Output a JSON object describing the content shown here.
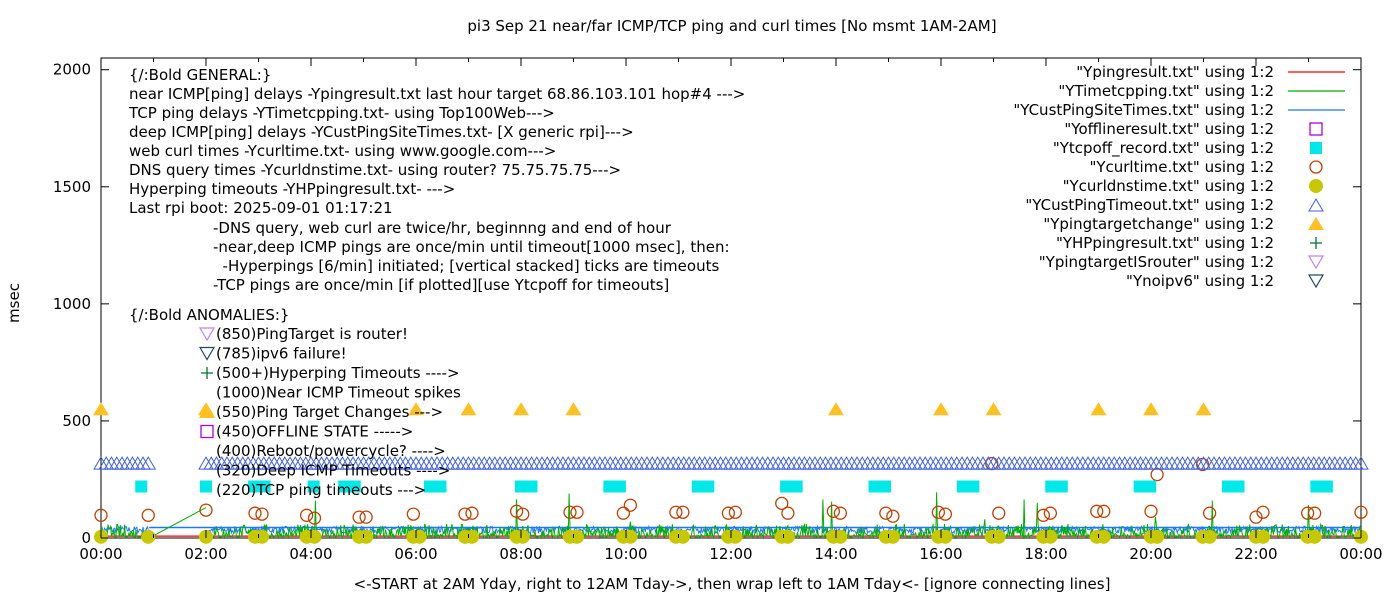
{
  "chart_data": {
    "type": "scatter",
    "title": "pi3 Sep 21  near/far ICMP/TCP ping and curl times [No msmt 1AM-2AM]",
    "xlabel": "<-START at 2AM Yday, right to 12AM Tday->, then wrap left to 1AM Tday<- [ignore connecting lines]",
    "ylabel": "msec",
    "xlim": [
      "00:00",
      "24:00"
    ],
    "ylim": [
      0,
      2050
    ],
    "x_ticks": [
      "00:00",
      "02:00",
      "04:00",
      "06:00",
      "08:00",
      "10:00",
      "12:00",
      "14:00",
      "16:00",
      "18:00",
      "20:00",
      "22:00",
      "00:00"
    ],
    "y_ticks": [
      "0",
      "500",
      "1000",
      "1500",
      "2000"
    ],
    "grid": false,
    "legend_placement": "top-right",
    "legend": [
      {
        "label": "\"Ypingresult.txt\" using 1:2",
        "style": "line",
        "color": "#ff0000"
      },
      {
        "label": "\"YTimetcpping.txt\" using 1:2",
        "style": "line",
        "color": "#00b000"
      },
      {
        "label": "\"YCustPingSiteTimes.txt\" using 1:2",
        "style": "line",
        "color": "#1e78ff"
      },
      {
        "label": "\"Yofflineresult.txt\" using 1:2",
        "style": "open-square",
        "color": "#b000e0"
      },
      {
        "label": "\"Ytcpoff_record.txt\" using 1:2",
        "style": "filled-square",
        "color": "#00e8e8"
      },
      {
        "label": "\"Ycurltime.txt\" using 1:2",
        "style": "open-circle",
        "color": "#c04000"
      },
      {
        "label": "\"Ycurldnstime.txt\" using 1:2",
        "style": "filled-circle",
        "color": "#c8c800"
      },
      {
        "label": "\"YCustPingTimeout.txt\" using 1:2",
        "style": "open-triangle",
        "color": "#4060e0"
      },
      {
        "label": "\"Ypingtargetchange\" using 1:2",
        "style": "filled-triangle",
        "color": "#ffc020"
      },
      {
        "label": "\"YHPpingresult.txt\" using 1:2",
        "style": "plus",
        "color": "#007030"
      },
      {
        "label": "\"YpingtargetISrouter\" using 1:2",
        "style": "open-down-triangle",
        "color": "#c080ff"
      },
      {
        "label": "\"Ynoipv6\" using 1:2",
        "style": "open-down-triangle",
        "color": "#204860"
      }
    ],
    "series": {
      "Ypingresult": {
        "baseline_ms": 8,
        "gap": [
          "00:55",
          "02:00"
        ]
      },
      "YTimetcpping": {
        "baseline_ms": [
          5,
          40
        ],
        "spikes": [
          [
            "02:00",
            130
          ],
          [
            "04:05",
            160
          ],
          [
            "06:10",
            60
          ],
          [
            "07:55",
            165
          ],
          [
            "08:55",
            190
          ],
          [
            "10:05",
            70
          ],
          [
            "13:45",
            165
          ],
          [
            "13:55",
            155
          ],
          [
            "15:55",
            195
          ],
          [
            "16:50",
            80
          ],
          [
            "17:35",
            165
          ],
          [
            "17:50",
            150
          ],
          [
            "20:05",
            90
          ],
          [
            "21:10",
            160
          ],
          [
            "23:00",
            140
          ]
        ],
        "connecting_line": [
          [
            "00:55",
            0
          ],
          [
            "02:00",
            130
          ]
        ]
      },
      "YCustPingSiteTimes": {
        "baseline_ms": [
          20,
          50
        ],
        "gap": [
          "00:55",
          "02:00"
        ]
      },
      "Ytcpoff_record": {
        "value": 220,
        "times": [
          "00:46",
          "02:00",
          "02:55",
          "03:07",
          "04:03",
          "04:38",
          "04:50",
          "06:16",
          "06:28",
          "08:00",
          "08:12",
          "09:41",
          "09:53",
          "11:22",
          "11:34",
          "13:03",
          "13:15",
          "14:44",
          "14:56",
          "16:25",
          "16:37",
          "18:06",
          "18:18",
          "19:47",
          "19:59",
          "21:28",
          "21:40",
          "23:09",
          "23:21"
        ]
      },
      "Ycurltime": [
        [
          "00:00",
          97
        ],
        [
          "00:54",
          97
        ],
        [
          "02:00",
          119
        ],
        [
          "02:56",
          106
        ],
        [
          "03:04",
          102
        ],
        [
          "03:55",
          97
        ],
        [
          "04:04",
          85
        ],
        [
          "04:55",
          89
        ],
        [
          "05:03",
          89
        ],
        [
          "05:57",
          102
        ],
        [
          "06:56",
          102
        ],
        [
          "07:04",
          106
        ],
        [
          "07:55",
          114
        ],
        [
          "08:02",
          102
        ],
        [
          "08:56",
          110
        ],
        [
          "09:04",
          110
        ],
        [
          "09:57",
          106
        ],
        [
          "10:05",
          140
        ],
        [
          "10:57",
          110
        ],
        [
          "11:05",
          110
        ],
        [
          "11:57",
          106
        ],
        [
          "12:05",
          110
        ],
        [
          "12:58",
          148
        ],
        [
          "13:05",
          106
        ],
        [
          "13:57",
          114
        ],
        [
          "14:05",
          106
        ],
        [
          "14:57",
          106
        ],
        [
          "15:05",
          93
        ],
        [
          "15:57",
          110
        ],
        [
          "16:05",
          102
        ],
        [
          "16:58",
          318
        ],
        [
          "17:06",
          106
        ],
        [
          "17:57",
          97
        ],
        [
          "18:05",
          106
        ],
        [
          "18:58",
          114
        ],
        [
          "19:06",
          114
        ],
        [
          "20:00",
          114
        ],
        [
          "20:07",
          271
        ],
        [
          "20:59",
          314
        ],
        [
          "21:07",
          106
        ],
        [
          "22:00",
          89
        ],
        [
          "22:08",
          110
        ],
        [
          "22:59",
          106
        ],
        [
          "23:07",
          106
        ],
        [
          "24:00",
          110
        ]
      ],
      "Ycurldnstime": {
        "value": 5,
        "times": [
          "00:00",
          "00:54",
          "02:00",
          "02:56",
          "03:04",
          "03:55",
          "04:04",
          "04:55",
          "05:03",
          "05:57",
          "06:04",
          "06:56",
          "07:04",
          "07:55",
          "08:02",
          "08:56",
          "09:04",
          "09:57",
          "10:05",
          "10:57",
          "11:05",
          "11:57",
          "12:05",
          "12:58",
          "13:05",
          "13:57",
          "14:05",
          "14:57",
          "15:05",
          "15:57",
          "16:05",
          "16:58",
          "17:06",
          "17:57",
          "18:05",
          "18:58",
          "19:06",
          "20:00",
          "20:07",
          "20:59",
          "21:07",
          "22:00",
          "22:08",
          "22:59",
          "23:07",
          "24:00"
        ]
      },
      "YCustPingTimeout": {
        "value": 320,
        "spans": [
          [
            "00:00",
            "00:55"
          ],
          [
            "02:00",
            "24:00"
          ]
        ]
      },
      "Ypingtargetchange": {
        "value": 550,
        "times": [
          "00:00",
          "02:00",
          "06:00",
          "07:00",
          "08:00",
          "09:00",
          "14:00",
          "16:00",
          "17:00",
          "19:00",
          "20:00",
          "21:00"
        ]
      }
    },
    "annotations": {
      "general": [
        "{/:Bold GENERAL:}",
        "near ICMP[ping] delays -Ypingresult.txt last hour target 68.86.103.101 hop#4 --->",
        "TCP ping delays -YTimetcpping.txt- using Top100Web--->",
        "deep ICMP[ping] delays -YCustPingSiteTimes.txt- [X generic rpi]--->",
        "web curl times -Ycurltime.txt- using www.google.com--->",
        "DNS query times -Ycurldnstime.txt- using router? 75.75.75.75--->",
        "Hyperping timeouts -YHPpingresult.txt- --->",
        "Last rpi boot: 2025-09-01 01:17:21"
      ],
      "notes": [
        "-DNS query, web curl are twice/hr, beginnng and end of hour",
        "-near,deep ICMP pings are once/min until timeout[1000 msec], then:",
        "  -Hyperpings [6/min] initiated; [vertical stacked] ticks are timeouts",
        "-TCP pings are once/min [if plotted][use Ytcpoff for timeouts]"
      ],
      "anomalies_header": "{/:Bold ANOMALIES:}",
      "anomalies": [
        {
          "text": "(850)PingTarget is router!",
          "marker": "open-down-triangle",
          "color": "#c080ff"
        },
        {
          "text": "(785)ipv6 failure!",
          "marker": "open-down-triangle",
          "color": "#204860"
        },
        {
          "text": "(500+)Hyperping Timeouts ---->",
          "marker": "plus",
          "color": "#007030"
        },
        {
          "text": "(1000)Near ICMP Timeout spikes",
          "marker": "",
          "color": ""
        },
        {
          "text": "(550)Ping Target Changes --->",
          "marker": "filled-triangle",
          "color": "#ffc020"
        },
        {
          "text": "(450)OFFLINE STATE ----->",
          "marker": "open-square",
          "color": "#b000e0"
        },
        {
          "text": "(400)Reboot/powercycle? ---->",
          "marker": "",
          "color": ""
        },
        {
          "text": "(320)Deep ICMP Timeouts ---->",
          "marker": "",
          "color": ""
        },
        {
          "text": "(220)TCP ping timeouts --->",
          "marker": "",
          "color": ""
        }
      ]
    }
  }
}
